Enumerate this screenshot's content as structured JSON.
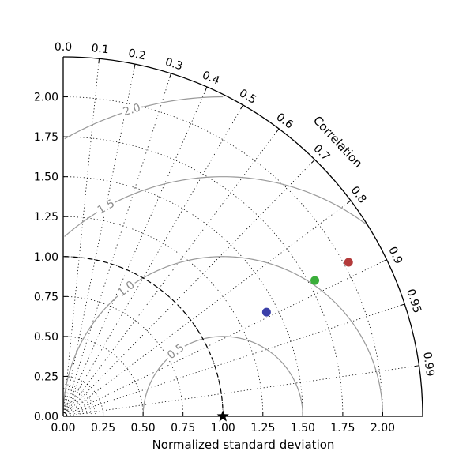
{
  "chart_data": {
    "type": "scatter",
    "subtype": "taylor-diagram",
    "xlabel": "Normalized standard deviation",
    "angular_axis_label": "Correlation",
    "std_range": [
      0,
      2.25
    ],
    "std_ticks": [
      0.0,
      0.25,
      0.5,
      0.75,
      1.0,
      1.25,
      1.5,
      1.75,
      2.0
    ],
    "std_tick_labels": [
      "0.00",
      "0.25",
      "0.50",
      "0.75",
      "1.00",
      "1.25",
      "1.50",
      "1.75",
      "2.00"
    ],
    "correlation_ticks": [
      0.0,
      0.1,
      0.2,
      0.3,
      0.4,
      0.5,
      0.6,
      0.7,
      0.8,
      0.9,
      0.95,
      0.99
    ],
    "correlation_tick_labels": [
      "0.0",
      "0.1",
      "0.2",
      "0.3",
      "0.4",
      "0.5",
      "0.6",
      "0.7",
      "0.8",
      "0.9",
      "0.95",
      "0.99"
    ],
    "rms_contours": [
      0.5,
      1.0,
      1.5,
      2.0
    ],
    "rms_labels": [
      "0.5",
      "1.0",
      "1.5",
      "2.0"
    ],
    "reference": {
      "std": 1.0,
      "correlation": 1.0,
      "marker": "star",
      "color": "#000000"
    },
    "reference_arc_std": 1.0,
    "grid": true,
    "points": [
      {
        "std": 1.43,
        "correlation": 0.89,
        "color": "#3a3fa8"
      },
      {
        "std": 1.79,
        "correlation": 0.88,
        "color": "#3aae3a"
      },
      {
        "std": 2.03,
        "correlation": 0.88,
        "color": "#b33b3b"
      }
    ]
  }
}
